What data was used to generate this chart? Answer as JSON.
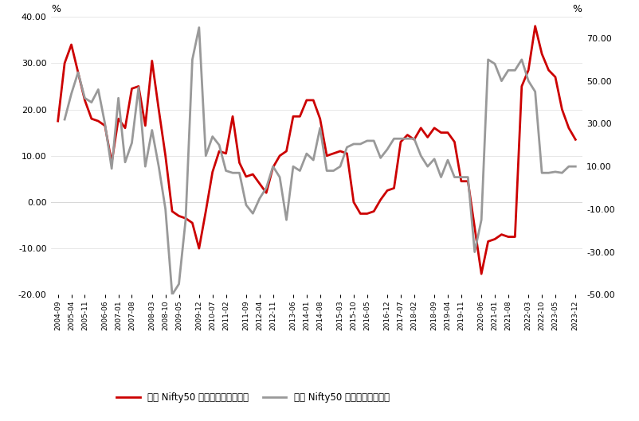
{
  "legend1": "印度 Nifty50 每股净利润同比增速",
  "legend2": "印度 Nifty50 同比变动（右轴）",
  "line1_color": "#cc0000",
  "line2_color": "#999999",
  "background_color": "#ffffff",
  "left_ylim": [
    -20,
    40
  ],
  "right_ylim": [
    -50,
    80
  ],
  "left_yticks": [
    -20,
    -10,
    0,
    10,
    20,
    30,
    40
  ],
  "right_yticks": [
    -50,
    -30,
    -10,
    10,
    30,
    50,
    70
  ],
  "dates": [
    "2004-09",
    "2004-12",
    "2005-03",
    "2005-06",
    "2005-09",
    "2005-12",
    "2006-03",
    "2006-06",
    "2006-09",
    "2006-12",
    "2007-03",
    "2007-06",
    "2007-09",
    "2007-12",
    "2008-03",
    "2008-06",
    "2008-09",
    "2008-12",
    "2009-03",
    "2009-06",
    "2009-09",
    "2009-12",
    "2010-03",
    "2010-06",
    "2010-09",
    "2010-12",
    "2011-03",
    "2011-06",
    "2011-09",
    "2011-12",
    "2012-03",
    "2012-06",
    "2012-09",
    "2012-12",
    "2013-03",
    "2013-06",
    "2013-09",
    "2013-12",
    "2014-03",
    "2014-06",
    "2014-09",
    "2014-12",
    "2015-03",
    "2015-06",
    "2015-09",
    "2015-12",
    "2016-03",
    "2016-06",
    "2016-09",
    "2016-12",
    "2017-03",
    "2017-06",
    "2017-09",
    "2017-12",
    "2018-03",
    "2018-06",
    "2018-09",
    "2018-12",
    "2019-03",
    "2019-06",
    "2019-09",
    "2019-12",
    "2020-03",
    "2020-06",
    "2020-09",
    "2020-12",
    "2021-03",
    "2021-06",
    "2021-09",
    "2021-12",
    "2022-03",
    "2022-06",
    "2022-09",
    "2022-12",
    "2023-03",
    "2023-06",
    "2023-09",
    "2023-12"
  ],
  "xtick_labels": [
    "2004-09",
    "2005-04",
    "2005-11",
    "2006-06",
    "2007-01",
    "2007-08",
    "2008-03",
    "2008-10",
    "2009-05",
    "2009-12",
    "2010-07",
    "2011-02",
    "2011-09",
    "2012-04",
    "2012-11",
    "2013-06",
    "2014-01",
    "2014-08",
    "2015-03",
    "2015-10",
    "2016-05",
    "2016-12",
    "2017-07",
    "2018-02",
    "2018-09",
    "2019-04",
    "2019-11",
    "2020-06",
    "2021-01",
    "2021-08",
    "2022-03",
    "2022-10",
    "2023-05",
    "2023-12"
  ],
  "line1_y": [
    17.5,
    30.0,
    34.0,
    28.0,
    22.0,
    18.0,
    17.5,
    16.5,
    8.5,
    18.0,
    16.0,
    24.5,
    25.0,
    16.5,
    30.5,
    20.0,
    10.0,
    -2.0,
    -3.0,
    -3.5,
    -4.5,
    -10.0,
    -2.0,
    6.5,
    11.0,
    10.5,
    18.5,
    8.5,
    5.5,
    6.0,
    4.0,
    2.0,
    7.5,
    10.0,
    11.0,
    18.5,
    18.5,
    22.0,
    22.0,
    18.0,
    10.0,
    10.5,
    11.0,
    10.5,
    0.0,
    -2.5,
    -2.5,
    -2.0,
    0.5,
    2.5,
    3.0,
    13.0,
    14.5,
    13.5,
    16.0,
    14.0,
    16.0,
    15.0,
    15.0,
    13.0,
    4.5,
    4.5,
    -5.5,
    -15.5,
    -8.5,
    -8.0,
    -7.0,
    -7.5,
    -7.5,
    25.0,
    28.5,
    38.0,
    32.0,
    28.5,
    27.0,
    20.0,
    16.0,
    13.5
  ],
  "line2_y": [
    null,
    32.0,
    44.0,
    54.0,
    42.0,
    40.0,
    46.0,
    30.0,
    9.0,
    42.0,
    12.0,
    21.0,
    47.0,
    10.0,
    27.0,
    10.0,
    -10.0,
    -50.0,
    -45.0,
    -15.0,
    60.0,
    75.0,
    15.0,
    24.0,
    20.0,
    8.0,
    7.0,
    7.0,
    -8.0,
    -12.0,
    -5.0,
    0.0,
    10.0,
    5.0,
    -15.0,
    10.0,
    8.0,
    16.0,
    13.0,
    28.0,
    8.0,
    8.0,
    10.0,
    19.0,
    20.5,
    20.5,
    22.0,
    22.0,
    14.0,
    18.0,
    23.0,
    23.0,
    23.0,
    23.0,
    15.0,
    10.0,
    13.5,
    5.0,
    13.0,
    5.0,
    5.0,
    5.0,
    -30.0,
    -15.0,
    60.0,
    58.0,
    50.0,
    55.0,
    55.0,
    60.0,
    50.0,
    45.0,
    7.0,
    7.0,
    7.5,
    7.0,
    10.0,
    10.0
  ]
}
